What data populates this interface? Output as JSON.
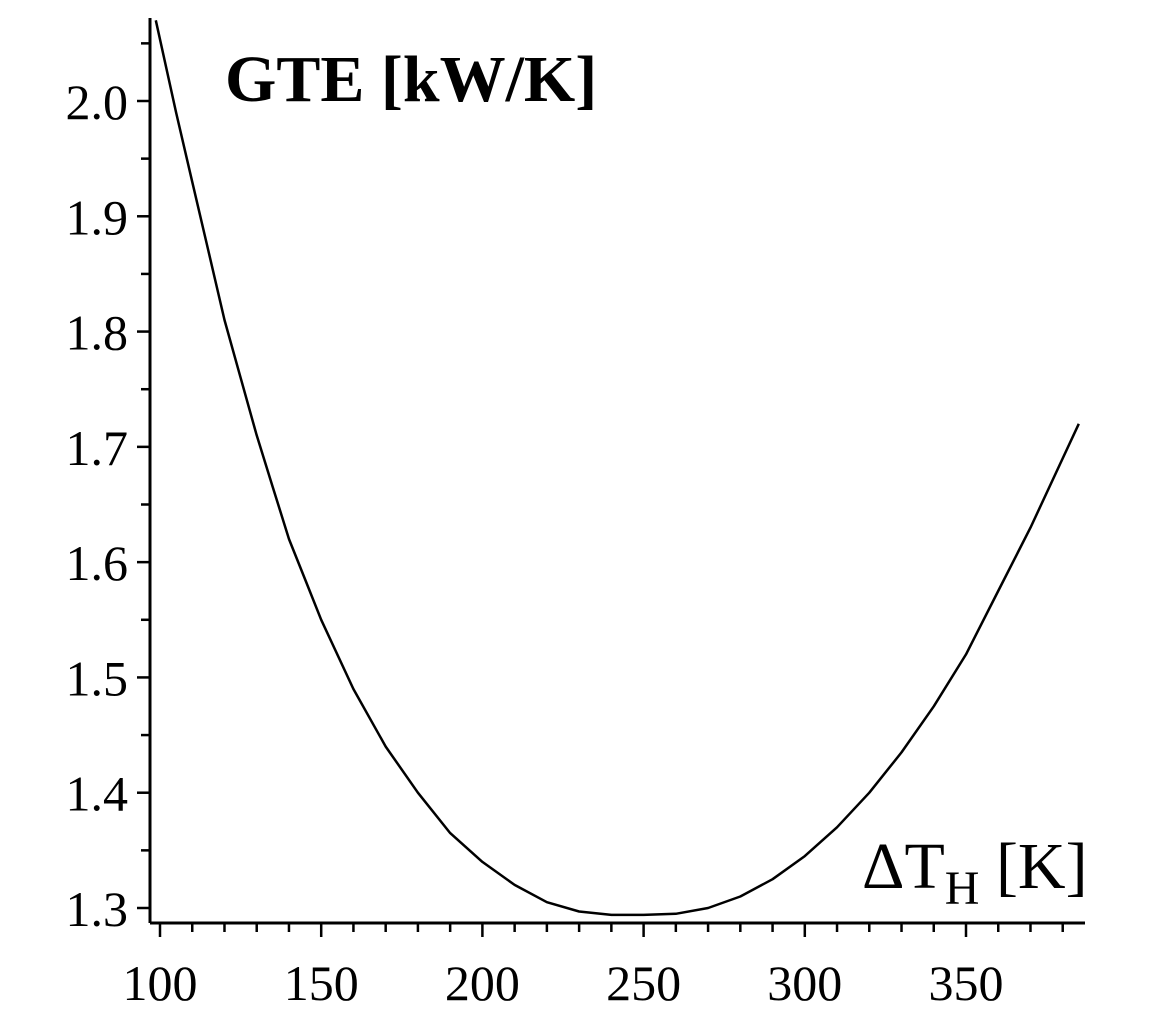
{
  "chart_data": {
    "type": "line",
    "title": "",
    "ylabel": "GTE [kW/K]",
    "xlabel_main": "ΔT",
    "xlabel_sub": "H",
    "xlabel_unit": " [K]",
    "xlim": [
      97,
      387
    ],
    "ylim": [
      1.285,
      2.07
    ],
    "x_ticks": [
      100,
      150,
      200,
      250,
      300,
      350
    ],
    "y_ticks": [
      1.3,
      1.4,
      1.5,
      1.6,
      1.7,
      1.8,
      1.9,
      2.0
    ],
    "x_tick_labels": [
      "100",
      "150",
      "200",
      "250",
      "300",
      "350"
    ],
    "y_tick_labels": [
      "1.3",
      "1.4",
      "1.5",
      "1.6",
      "1.7",
      "1.8",
      "1.9",
      "2.0"
    ],
    "x_minor_step": 10,
    "y_minor_step": 0.05,
    "grid": false,
    "legend": "none",
    "series": [
      {
        "color": "#000000",
        "x": [
          98.7,
          105,
          110,
          115,
          120,
          125,
          130,
          135,
          140,
          145,
          150,
          160,
          170,
          180,
          190,
          200,
          210,
          220,
          230,
          240,
          250,
          260,
          270,
          280,
          290,
          300,
          310,
          320,
          330,
          340,
          350,
          360,
          370,
          380,
          385
        ],
        "y": [
          2.07,
          1.99,
          1.93,
          1.87,
          1.81,
          1.76,
          1.71,
          1.665,
          1.62,
          1.585,
          1.55,
          1.49,
          1.44,
          1.4,
          1.365,
          1.34,
          1.32,
          1.305,
          1.297,
          1.294,
          1.294,
          1.295,
          1.3,
          1.31,
          1.325,
          1.345,
          1.37,
          1.4,
          1.435,
          1.475,
          1.52,
          1.575,
          1.63,
          1.69,
          1.72
        ]
      }
    ]
  }
}
